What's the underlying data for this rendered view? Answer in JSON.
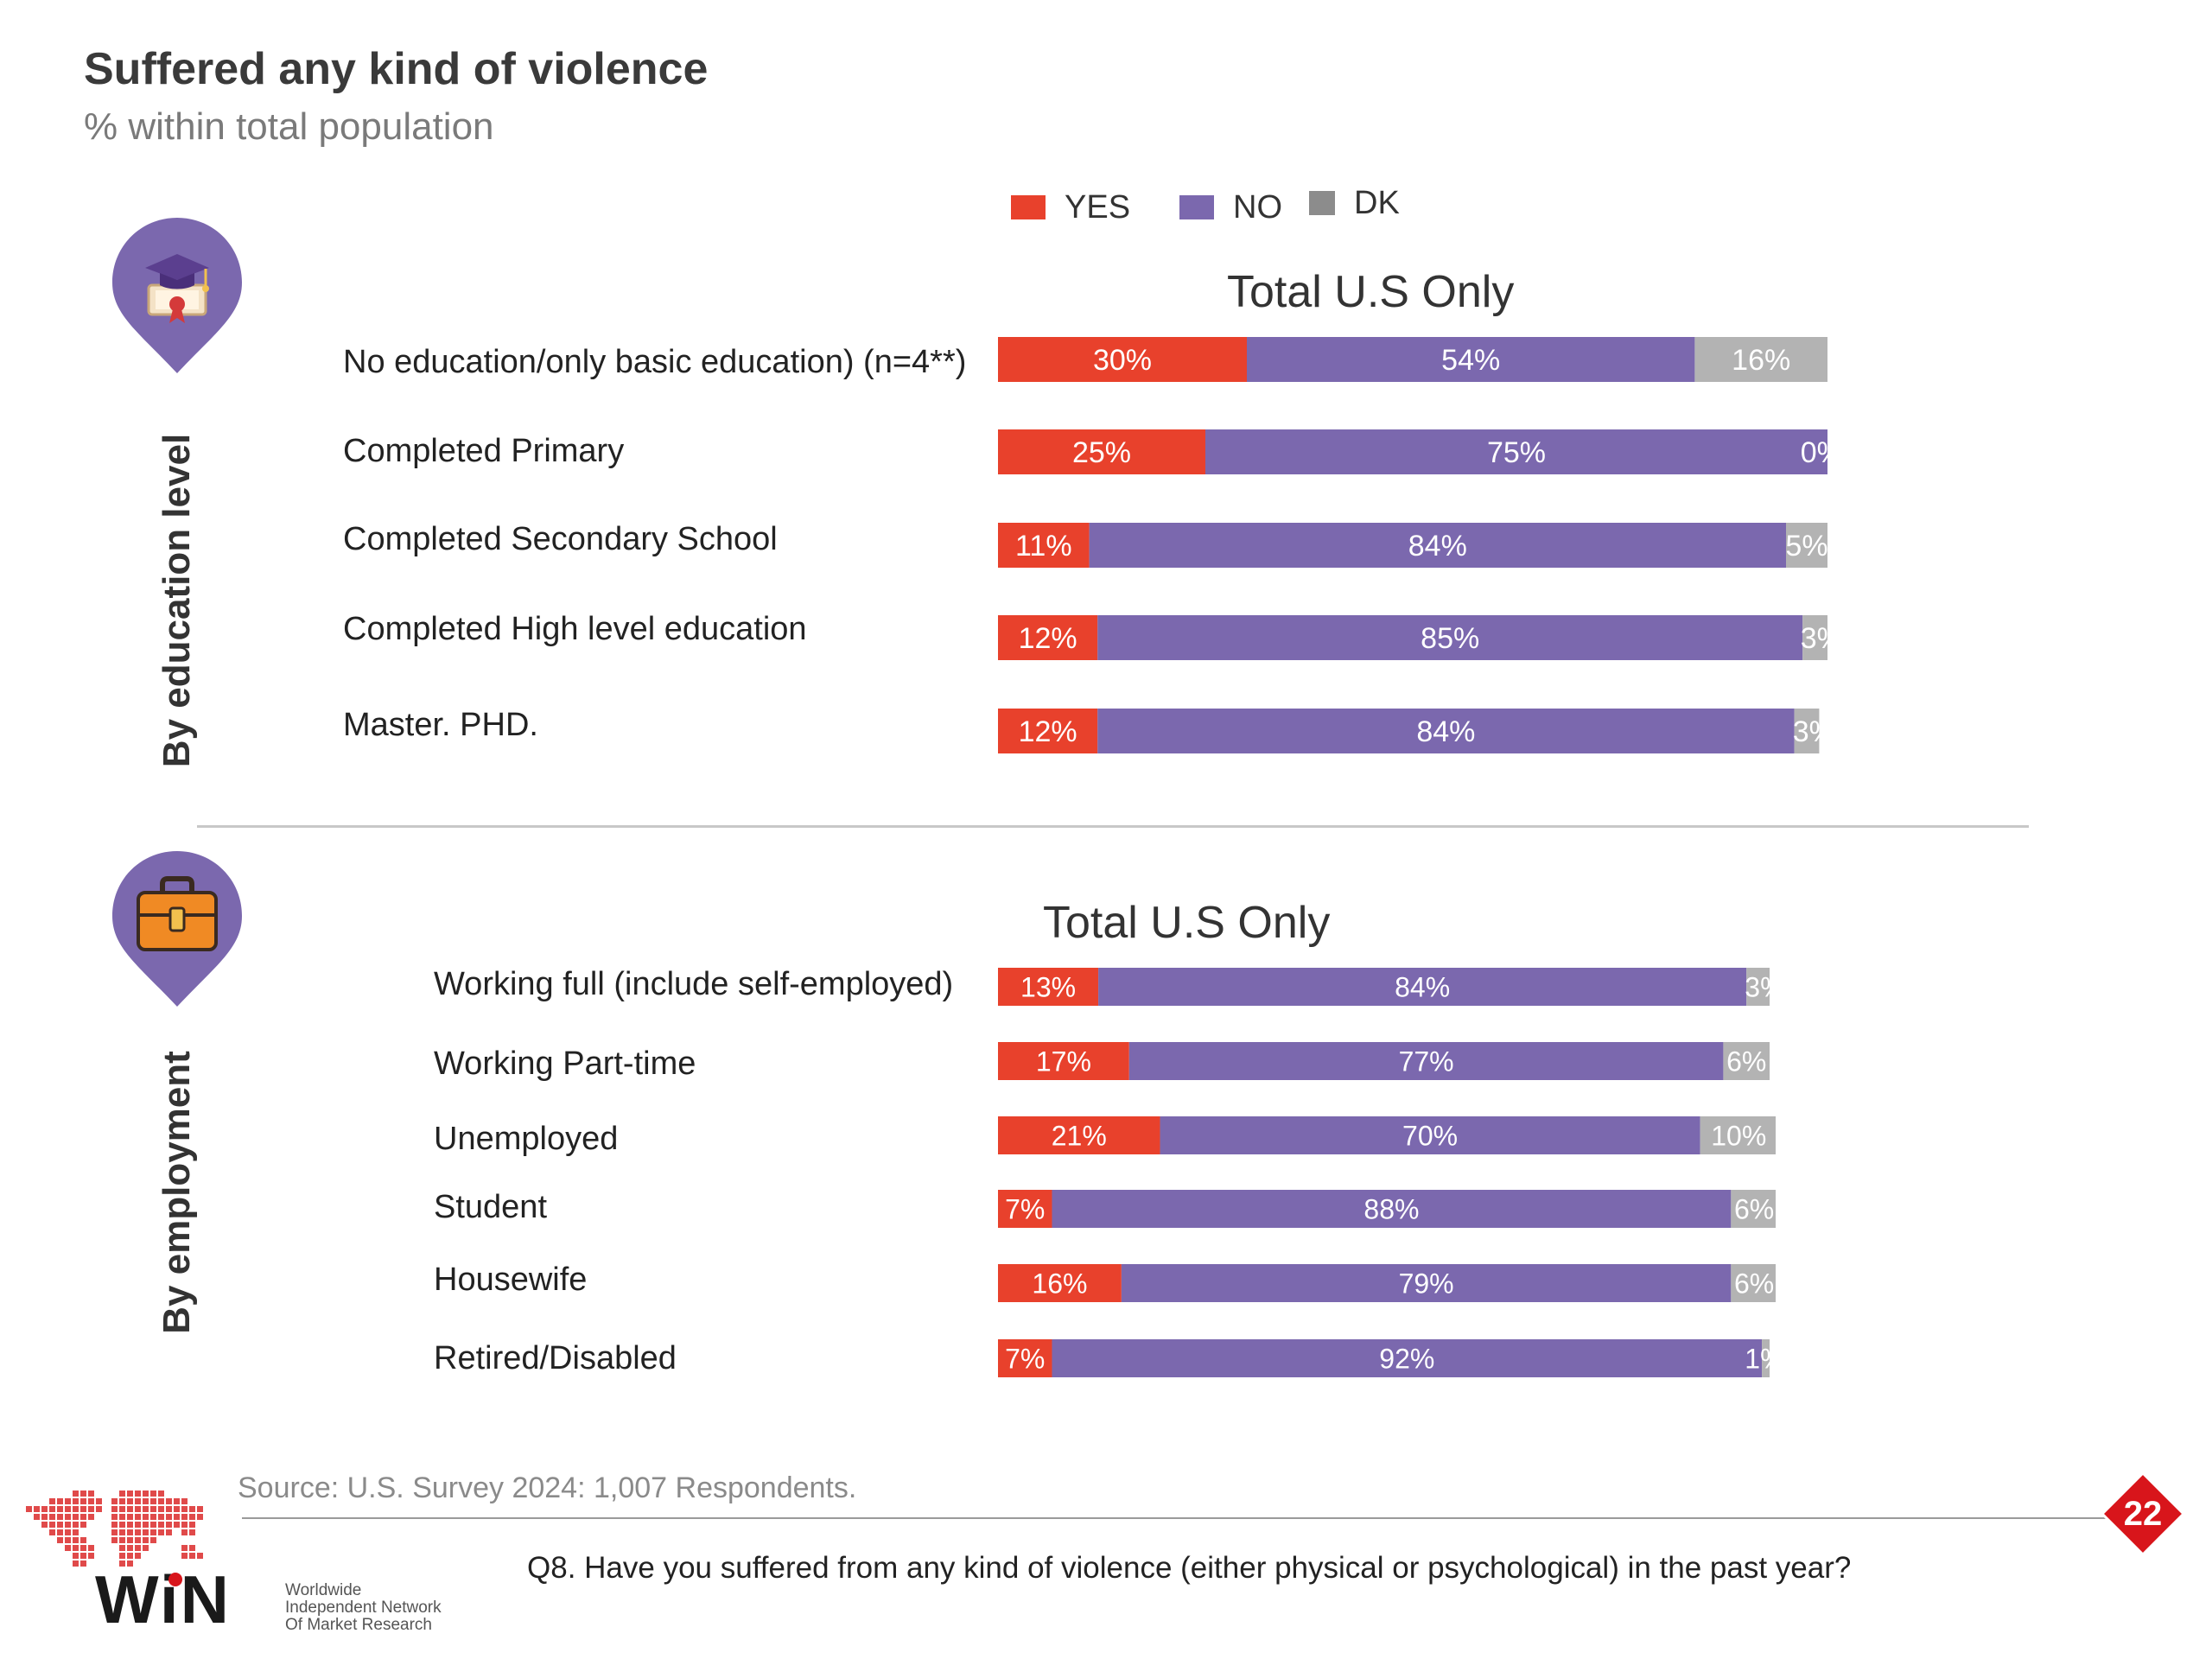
{
  "header": {
    "title": "Suffered any kind of violence",
    "subtitle": "% within total population"
  },
  "legend": [
    {
      "label": "YES",
      "color": "#e8412c"
    },
    {
      "label": "NO",
      "color": "#7b68ae"
    },
    {
      "label": "DK",
      "color": "#8c8c8c"
    }
  ],
  "colors": {
    "yes": "#e8412c",
    "no": "#7b68ae",
    "dk": "#b3b3b3",
    "pin": "#7b68ae"
  },
  "sections": {
    "education": {
      "label": "By education level",
      "icon": "graduation-cap-icon"
    },
    "employment": {
      "label": "By employment",
      "icon": "briefcase-icon"
    }
  },
  "chart_data": [
    {
      "type": "bar",
      "orientation": "horizontal",
      "stacked": true,
      "percent": true,
      "title": "Total U.S Only",
      "categories": [
        "No education/only basic education) (n=4**)",
        "Completed Primary",
        "Completed Secondary School",
        "Completed High level education",
        "Master. PHD."
      ],
      "series": [
        {
          "name": "YES",
          "values": [
            30,
            25,
            11,
            12,
            12
          ]
        },
        {
          "name": "NO",
          "values": [
            54,
            75,
            84,
            85,
            84
          ]
        },
        {
          "name": "DK",
          "values": [
            16,
            0,
            5,
            3,
            3
          ]
        }
      ],
      "xlim": [
        0,
        100
      ]
    },
    {
      "type": "bar",
      "orientation": "horizontal",
      "stacked": true,
      "percent": true,
      "title": "Total U.S Only",
      "categories": [
        "Working full (include self-employed)",
        "Working Part-time",
        "Unemployed",
        "Student",
        "Housewife",
        "Retired/Disabled"
      ],
      "series": [
        {
          "name": "YES",
          "values": [
            13,
            17,
            21,
            7,
            16,
            7
          ]
        },
        {
          "name": "NO",
          "values": [
            84,
            77,
            70,
            88,
            79,
            92
          ]
        },
        {
          "name": "DK",
          "values": [
            3,
            6,
            10,
            6,
            6,
            1
          ]
        }
      ],
      "xlim": [
        0,
        100
      ]
    }
  ],
  "footer": {
    "source": "Source: U.S. Survey 2024: 1,007 Respondents.",
    "question": "Q8. Have you suffered from any kind of violence (either physical or psychological) in the past year?",
    "page_number": "22",
    "logo": {
      "wordmark": "WiN",
      "tagline_lines": [
        "Worldwide",
        "Independent Network",
        "Of Market Research"
      ]
    }
  }
}
